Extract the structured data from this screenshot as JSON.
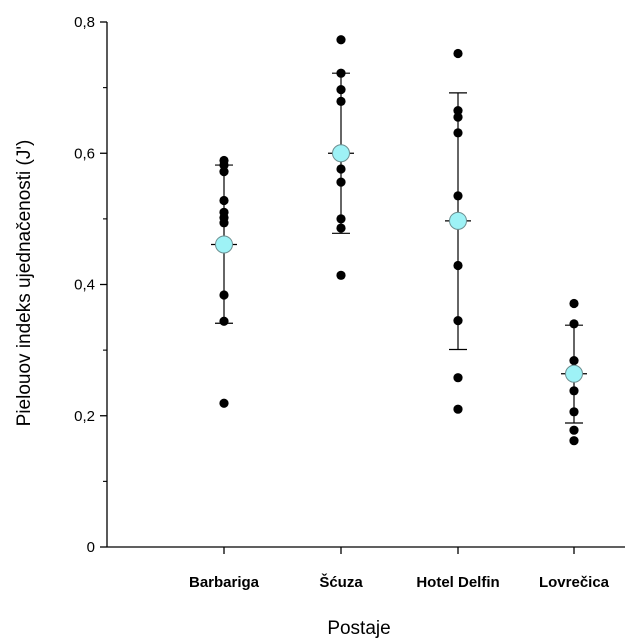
{
  "chart_data": {
    "type": "scatter",
    "title": "",
    "xlabel": "Postaje",
    "ylabel": "Pielouov indeks ujednačenosti (J')",
    "ylim": [
      0,
      0.8
    ],
    "yticks": [
      0,
      0.2,
      0.4,
      0.6,
      0.8
    ],
    "ytick_labels": [
      "0",
      "0,2",
      "0,4",
      "0,6",
      "0,8"
    ],
    "categories": [
      "Barbariga",
      "Šćuza",
      "Hotel Delfin",
      "Lovrečica"
    ],
    "points": [
      [
        0.589,
        0.582,
        0.572,
        0.528,
        0.51,
        0.502,
        0.494,
        0.384,
        0.344,
        0.219
      ],
      [
        0.773,
        0.722,
        0.697,
        0.679,
        0.576,
        0.556,
        0.5,
        0.486,
        0.414
      ],
      [
        0.752,
        0.665,
        0.655,
        0.631,
        0.535,
        0.429,
        0.345,
        0.258,
        0.21
      ],
      [
        0.371,
        0.34,
        0.284,
        0.238,
        0.206,
        0.178,
        0.162
      ]
    ],
    "means": [
      0.461,
      0.6,
      0.497,
      0.264
    ],
    "whisker_high": [
      0.582,
      0.722,
      0.692,
      0.338
    ],
    "whisker_low": [
      0.341,
      0.478,
      0.301,
      0.189
    ],
    "colors": {
      "points": "#000000",
      "mean_fill": "#9ef2f6",
      "mean_stroke": "#6d8f91",
      "axis": "#000000"
    },
    "grid": false,
    "legend": "none"
  }
}
